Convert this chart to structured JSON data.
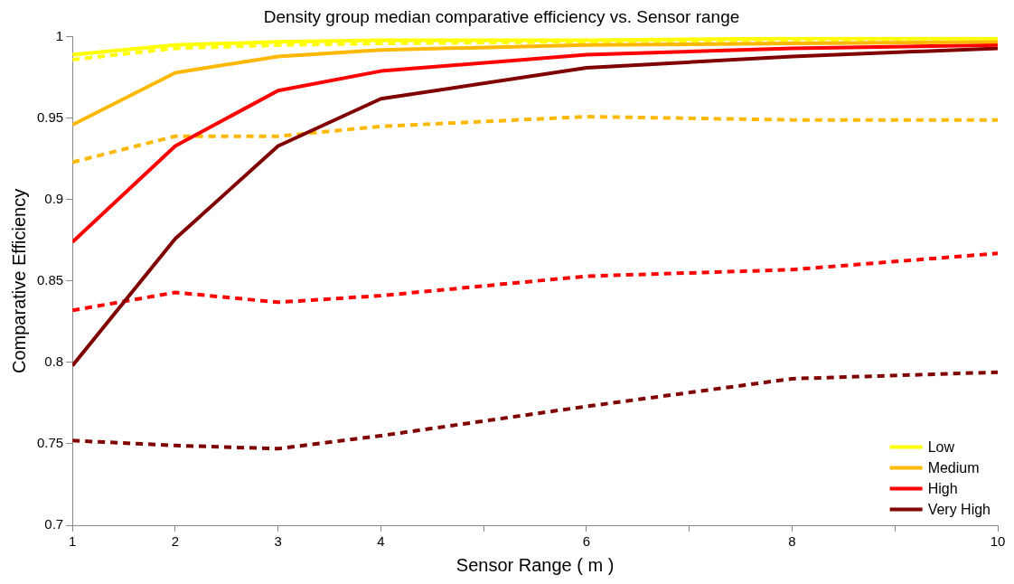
{
  "chart_data": {
    "type": "line",
    "title": "Density group median comparative efficiency vs. Sensor range",
    "xlabel": "Sensor Range ( m )",
    "ylabel": "Comparative Efficiency",
    "x": [
      1,
      2,
      3,
      4,
      6,
      8,
      10
    ],
    "xlim": [
      1,
      10
    ],
    "xticks": [
      1,
      2,
      3,
      4,
      {
        "value": 5,
        "label": null
      },
      6,
      {
        "value": 7,
        "label": null
      },
      8,
      {
        "value": 9,
        "label": null
      },
      10
    ],
    "ylim": [
      0.7,
      1
    ],
    "yticks": [
      0.7,
      0.75,
      0.8,
      0.85,
      0.9,
      0.95,
      1
    ],
    "grid": false,
    "legend": "bottom right",
    "marker": "none",
    "series": [
      {
        "name": "Low",
        "color": "#ffff00",
        "values": [
          0.989,
          0.995,
          0.997,
          0.998,
          0.998,
          0.999,
          0.999
        ]
      },
      {
        "name": "Medium",
        "color": "#ffb800",
        "values": [
          0.946,
          0.978,
          0.988,
          0.992,
          0.995,
          0.996,
          0.997
        ]
      },
      {
        "name": "High",
        "color": "#ff0000",
        "values": [
          0.874,
          0.933,
          0.967,
          0.979,
          0.989,
          0.993,
          0.995
        ]
      },
      {
        "name": "Very High",
        "color": "#800000",
        "values": [
          0.798,
          0.876,
          0.933,
          0.962,
          0.981,
          0.988,
          0.993
        ]
      },
      {
        "color": "#ffff00",
        "line_style": "dashed",
        "values": [
          0.986,
          0.993,
          0.995,
          0.996,
          0.997,
          0.998,
          0.998
        ]
      },
      {
        "color": "#ffb800",
        "line_style": "dashed",
        "values": [
          0.923,
          0.939,
          0.939,
          0.945,
          0.951,
          0.949,
          0.949
        ]
      },
      {
        "color": "#ff0000",
        "line_style": "dashed",
        "values": [
          0.832,
          0.843,
          0.837,
          0.841,
          0.853,
          0.857,
          0.867
        ]
      },
      {
        "color": "#800000",
        "line_style": "dashed",
        "values": [
          0.752,
          0.749,
          0.747,
          0.755,
          0.773,
          0.79,
          0.794
        ]
      }
    ]
  }
}
